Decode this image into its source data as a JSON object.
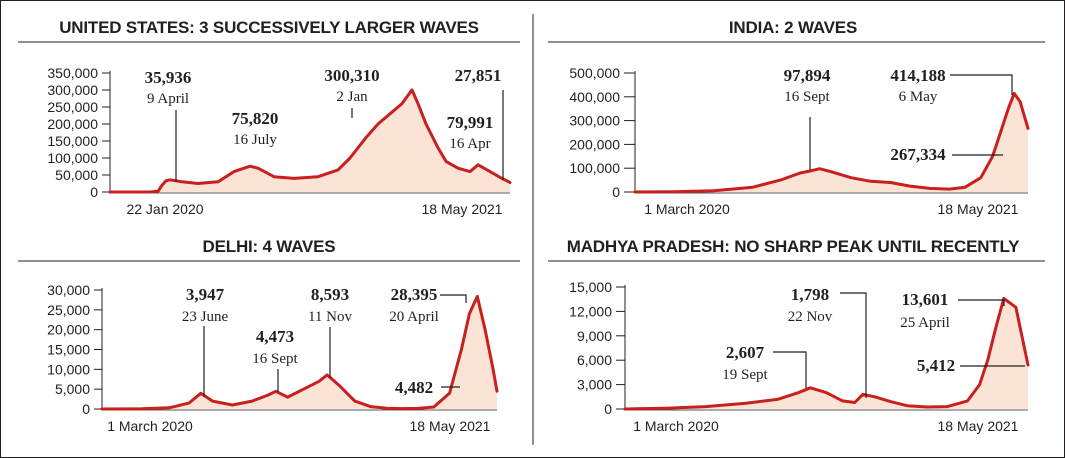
{
  "colors": {
    "line": "#c8201e",
    "fill": "#fbe3d6",
    "axis": "#231f20",
    "frame": "#231f20"
  },
  "chart_data": [
    {
      "type": "area",
      "title": "UNITED STATES: 3 SUCCESSIVELY LARGER WAVES",
      "ylim": [
        0,
        350000
      ],
      "yticks": [
        "350,000",
        "300,000",
        "250,000",
        "200,000",
        "150,000",
        "100,000",
        "50,000",
        "0"
      ],
      "xlabels": [
        "22 Jan 2020",
        "18 May 2021"
      ],
      "x_range": [
        "2020-01-22",
        "2021-05-18"
      ],
      "series": [
        {
          "points": [
            [
              0,
              0
            ],
            [
              0.03,
              0
            ],
            [
              0.1,
              0
            ],
            [
              0.12,
              2000
            ],
            [
              0.13,
              20000
            ],
            [
              0.14,
              33000
            ],
            [
              0.15,
              35936
            ],
            [
              0.18,
              30000
            ],
            [
              0.22,
              25000
            ],
            [
              0.27,
              30000
            ],
            [
              0.31,
              60000
            ],
            [
              0.35,
              75820
            ],
            [
              0.37,
              70000
            ],
            [
              0.41,
              45000
            ],
            [
              0.46,
              40000
            ],
            [
              0.52,
              45000
            ],
            [
              0.57,
              65000
            ],
            [
              0.6,
              100000
            ],
            [
              0.64,
              160000
            ],
            [
              0.67,
              200000
            ],
            [
              0.7,
              230000
            ],
            [
              0.73,
              260000
            ],
            [
              0.755,
              300310
            ],
            [
              0.77,
              260000
            ],
            [
              0.79,
              200000
            ],
            [
              0.82,
              130000
            ],
            [
              0.84,
              90000
            ],
            [
              0.87,
              70000
            ],
            [
              0.9,
              60000
            ],
            [
              0.92,
              79991
            ],
            [
              0.95,
              60000
            ],
            [
              0.98,
              40000
            ],
            [
              1,
              27851
            ]
          ]
        }
      ],
      "annotations": [
        {
          "value": "35,936",
          "label": "9 April"
        },
        {
          "value": "75,820",
          "label": "16 July"
        },
        {
          "value": "300,310",
          "label": "2 Jan"
        },
        {
          "value": "27,851",
          "label": ""
        },
        {
          "value": "79,991",
          "label": "16 Apr"
        }
      ]
    },
    {
      "type": "area",
      "title": "INDIA: 2 WAVES",
      "ylim": [
        0,
        500000
      ],
      "yticks": [
        "500,000",
        "400,000",
        "300,000",
        "200,000",
        "100,000",
        "0"
      ],
      "xlabels": [
        "1 March 2020",
        "18 May 2021"
      ],
      "x_range": [
        "2020-03-01",
        "2021-05-18"
      ],
      "series": [
        {
          "points": [
            [
              0,
              0
            ],
            [
              0.1,
              1000
            ],
            [
              0.2,
              5000
            ],
            [
              0.3,
              20000
            ],
            [
              0.37,
              50000
            ],
            [
              0.42,
              80000
            ],
            [
              0.45,
              90000
            ],
            [
              0.47,
              97894
            ],
            [
              0.5,
              85000
            ],
            [
              0.55,
              60000
            ],
            [
              0.6,
              45000
            ],
            [
              0.65,
              40000
            ],
            [
              0.7,
              25000
            ],
            [
              0.75,
              15000
            ],
            [
              0.8,
              12000
            ],
            [
              0.84,
              20000
            ],
            [
              0.88,
              60000
            ],
            [
              0.91,
              150000
            ],
            [
              0.93,
              250000
            ],
            [
              0.95,
              350000
            ],
            [
              0.965,
              414188
            ],
            [
              0.98,
              380000
            ],
            [
              1,
              267334
            ]
          ]
        }
      ],
      "annotations": [
        {
          "value": "97,894",
          "label": "16 Sept"
        },
        {
          "value": "414,188",
          "label": "6 May"
        },
        {
          "value": "267,334",
          "label": ""
        }
      ]
    },
    {
      "type": "area",
      "title": "DELHI: 4 WAVES",
      "ylim": [
        0,
        30000
      ],
      "yticks": [
        "30,000",
        "25,000",
        "20,000",
        "15,000",
        "10,000",
        "5,000",
        "0"
      ],
      "xlabels": [
        "1 March 2020",
        "18 May 2021"
      ],
      "x_range": [
        "2020-03-01",
        "2021-05-18"
      ],
      "series": [
        {
          "points": [
            [
              0,
              0
            ],
            [
              0.1,
              50
            ],
            [
              0.17,
              300
            ],
            [
              0.22,
              1500
            ],
            [
              0.25,
              3947
            ],
            [
              0.28,
              2000
            ],
            [
              0.33,
              1000
            ],
            [
              0.38,
              2000
            ],
            [
              0.42,
              3500
            ],
            [
              0.44,
              4473
            ],
            [
              0.47,
              3000
            ],
            [
              0.51,
              5000
            ],
            [
              0.55,
              7000
            ],
            [
              0.57,
              8593
            ],
            [
              0.6,
              6000
            ],
            [
              0.64,
              2000
            ],
            [
              0.68,
              600
            ],
            [
              0.72,
              200
            ],
            [
              0.76,
              100
            ],
            [
              0.8,
              150
            ],
            [
              0.84,
              500
            ],
            [
              0.88,
              4000
            ],
            [
              0.91,
              15000
            ],
            [
              0.93,
              24000
            ],
            [
              0.95,
              28395
            ],
            [
              0.97,
              20000
            ],
            [
              0.99,
              10000
            ],
            [
              1,
              4482
            ]
          ]
        }
      ],
      "annotations": [
        {
          "value": "3,947",
          "label": "23 June"
        },
        {
          "value": "4,473",
          "label": "16 Sept"
        },
        {
          "value": "8,593",
          "label": "11 Nov"
        },
        {
          "value": "28,395",
          "label": "20 April"
        },
        {
          "value": "4,482",
          "label": ""
        }
      ]
    },
    {
      "type": "area",
      "title": "MADHYA PRADESH: NO SHARP PEAK UNTIL RECENTLY",
      "ylim": [
        0,
        15000
      ],
      "yticks": [
        "15,000",
        "12,000",
        "9,000",
        "6,000",
        "3,000",
        "0"
      ],
      "xlabels": [
        "1 March 2020",
        "18 May 2021"
      ],
      "x_range": [
        "2020-03-01",
        "2021-05-18"
      ],
      "series": [
        {
          "points": [
            [
              0,
              0
            ],
            [
              0.1,
              100
            ],
            [
              0.2,
              300
            ],
            [
              0.3,
              700
            ],
            [
              0.38,
              1200
            ],
            [
              0.43,
              2000
            ],
            [
              0.46,
              2607
            ],
            [
              0.5,
              2000
            ],
            [
              0.54,
              1000
            ],
            [
              0.57,
              800
            ],
            [
              0.59,
              1798
            ],
            [
              0.62,
              1500
            ],
            [
              0.66,
              900
            ],
            [
              0.7,
              400
            ],
            [
              0.75,
              250
            ],
            [
              0.8,
              300
            ],
            [
              0.85,
              1000
            ],
            [
              0.88,
              3000
            ],
            [
              0.9,
              6000
            ],
            [
              0.92,
              10000
            ],
            [
              0.94,
              13601
            ],
            [
              0.97,
              12500
            ],
            [
              1,
              5412
            ]
          ]
        }
      ],
      "annotations": [
        {
          "value": "2,607",
          "label": "19 Sept"
        },
        {
          "value": "1,798",
          "label": "22 Nov"
        },
        {
          "value": "13,601",
          "label": "25 April"
        },
        {
          "value": "5,412",
          "label": ""
        }
      ]
    }
  ]
}
